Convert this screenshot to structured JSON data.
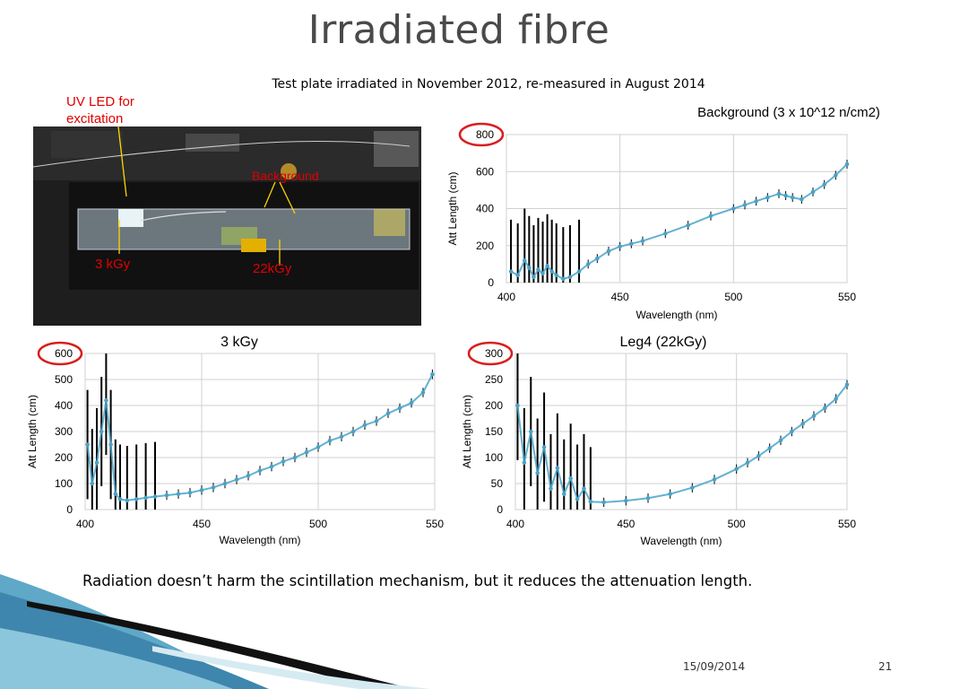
{
  "slide": {
    "title": "Irradiated fibre",
    "subtitle": "Test plate irradiated in November 2012, re-measured in August 2014",
    "bottom_text": "Radiation doesn’t harm the scintillation mechanism, but it reduces the attenuation length.",
    "date": "15/09/2014",
    "page": "21"
  },
  "photo": {
    "label_uv": "UV LED for excitation",
    "label_background": "Background",
    "label_3kgy": "3 kGy",
    "label_22kgy": "22kGy"
  },
  "chart_data": [
    {
      "type": "scatter",
      "title": "Background (3 x 10^12 n/cm2)",
      "xlabel": "Wavelength (nm)",
      "ylabel": "Att Length (cm)",
      "xlim": [
        400,
        550
      ],
      "ylim": [
        0,
        800
      ],
      "xticks": [
        400,
        450,
        500,
        550
      ],
      "yticks": [
        0,
        200,
        400,
        600,
        800
      ],
      "grid": true,
      "marker_color": "#4aa3c8",
      "error_bars": true,
      "x": [
        402,
        405,
        408,
        410,
        412,
        414,
        416,
        418,
        420,
        422,
        425,
        428,
        432,
        436,
        440,
        445,
        450,
        455,
        460,
        470,
        480,
        490,
        500,
        505,
        510,
        515,
        520,
        523,
        526,
        530,
        535,
        540,
        545,
        550
      ],
      "y": [
        60,
        40,
        120,
        80,
        30,
        70,
        50,
        90,
        60,
        40,
        20,
        30,
        60,
        100,
        130,
        170,
        195,
        210,
        225,
        265,
        310,
        360,
        400,
        420,
        440,
        460,
        480,
        470,
        460,
        450,
        490,
        530,
        580,
        640
      ]
    },
    {
      "type": "scatter",
      "title": "3 kGy",
      "xlabel": "Wavelength (nm)",
      "ylabel": "Att Length (cm)",
      "xlim": [
        400,
        550
      ],
      "ylim": [
        0,
        600
      ],
      "xticks": [
        400,
        450,
        500,
        550
      ],
      "yticks": [
        0,
        100,
        200,
        300,
        400,
        500,
        600
      ],
      "grid": true,
      "marker_color": "#4aa3c8",
      "error_bars": true,
      "x": [
        401,
        403,
        405,
        407,
        409,
        411,
        413,
        415,
        418,
        422,
        426,
        430,
        435,
        440,
        445,
        450,
        455,
        460,
        465,
        470,
        475,
        480,
        485,
        490,
        495,
        500,
        505,
        510,
        515,
        520,
        525,
        530,
        535,
        540,
        545,
        549
      ],
      "y": [
        250,
        100,
        180,
        300,
        420,
        250,
        60,
        40,
        35,
        40,
        45,
        50,
        55,
        60,
        65,
        75,
        85,
        100,
        115,
        130,
        150,
        165,
        185,
        200,
        220,
        240,
        265,
        280,
        300,
        325,
        340,
        370,
        390,
        410,
        450,
        520
      ]
    },
    {
      "type": "scatter",
      "title": "Leg4 (22kGy)",
      "xlabel": "Wavelength (nm)",
      "ylabel": "Att Length (cm)",
      "xlim": [
        400,
        550
      ],
      "ylim": [
        0,
        300
      ],
      "xticks": [
        400,
        450,
        500,
        550
      ],
      "yticks": [
        0,
        50,
        100,
        150,
        200,
        250,
        300
      ],
      "grid": true,
      "marker_color": "#4aa3c8",
      "error_bars": true,
      "x": [
        401,
        404,
        407,
        410,
        413,
        416,
        419,
        422,
        425,
        428,
        431,
        434,
        440,
        450,
        460,
        470,
        480,
        490,
        500,
        505,
        510,
        515,
        520,
        525,
        530,
        535,
        540,
        545,
        550
      ],
      "y": [
        200,
        90,
        150,
        70,
        120,
        40,
        80,
        30,
        60,
        20,
        40,
        15,
        14,
        17,
        22,
        30,
        42,
        58,
        78,
        90,
        103,
        118,
        133,
        150,
        165,
        180,
        195,
        213,
        240
      ]
    }
  ]
}
